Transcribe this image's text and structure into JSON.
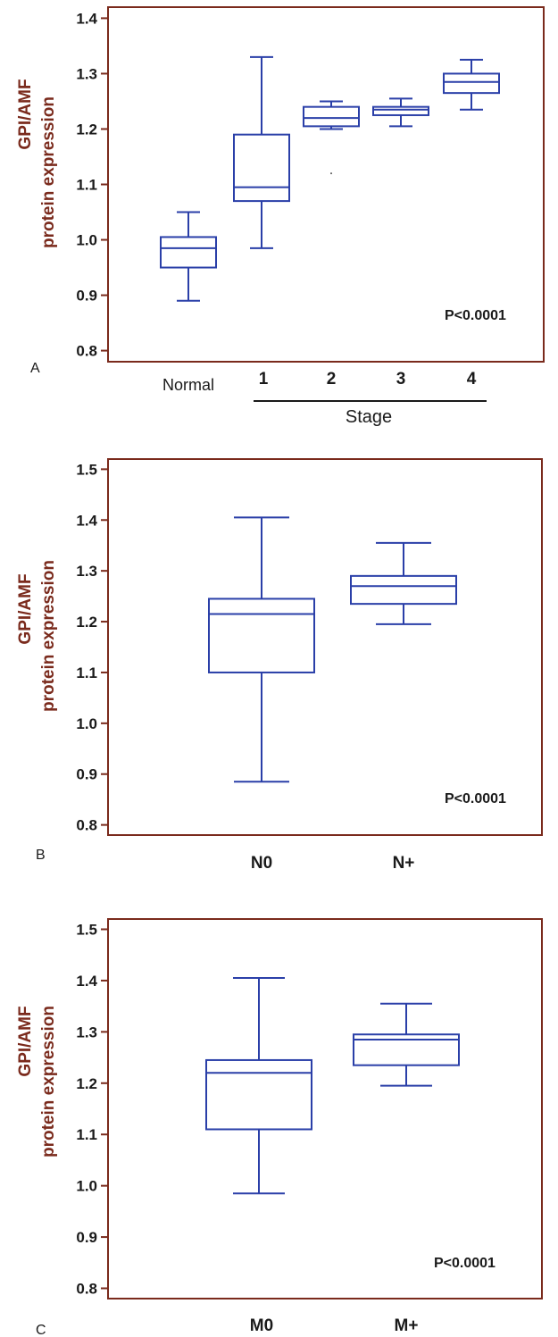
{
  "colors": {
    "frame": "#7a2a1c",
    "box": "#2a3fa8",
    "text": "#1a1a1a",
    "axis_label": "#7a2a1c"
  },
  "chart_data": [
    {
      "type": "box",
      "panel_label": "A",
      "ylabel": [
        "GPI/AMF",
        "protein expression"
      ],
      "ylim": [
        0.78,
        1.42
      ],
      "yticks": [
        "0.8",
        "0.9",
        "1.0",
        "1.1",
        "1.2",
        "1.3",
        "1.4"
      ],
      "categories": [
        "Normal",
        "1",
        "2",
        "3",
        "4"
      ],
      "group_label": "Stage",
      "annotation": "P<0.0001",
      "series": [
        {
          "category": "Normal",
          "min": 0.89,
          "q1": 0.95,
          "median": 0.985,
          "q3": 1.005,
          "max": 1.05
        },
        {
          "category": "1",
          "min": 0.985,
          "q1": 1.07,
          "median": 1.095,
          "q3": 1.19,
          "max": 1.33
        },
        {
          "category": "2",
          "min": 1.2,
          "q1": 1.205,
          "median": 1.22,
          "q3": 1.24,
          "max": 1.25
        },
        {
          "category": "3",
          "min": 1.205,
          "q1": 1.225,
          "median": 1.235,
          "q3": 1.24,
          "max": 1.255
        },
        {
          "category": "4",
          "min": 1.235,
          "q1": 1.265,
          "median": 1.285,
          "q3": 1.3,
          "max": 1.325
        }
      ],
      "outliers": [
        {
          "category": "2",
          "value": 1.12
        }
      ]
    },
    {
      "type": "box",
      "panel_label": "B",
      "ylabel": [
        "GPI/AMF",
        "protein expression"
      ],
      "ylim": [
        0.78,
        1.52
      ],
      "yticks": [
        "0.8",
        "0.9",
        "1.0",
        "1.1",
        "1.2",
        "1.3",
        "1.4",
        "1.5"
      ],
      "categories": [
        "N0",
        "N+"
      ],
      "annotation": "P<0.0001",
      "series": [
        {
          "category": "N0",
          "min": 0.885,
          "q1": 1.1,
          "median": 1.215,
          "q3": 1.245,
          "max": 1.405
        },
        {
          "category": "N+",
          "min": 1.195,
          "q1": 1.235,
          "median": 1.27,
          "q3": 1.29,
          "max": 1.355
        }
      ]
    },
    {
      "type": "box",
      "panel_label": "C",
      "ylabel": [
        "GPI/AMF",
        "protein expression"
      ],
      "ylim": [
        0.78,
        1.52
      ],
      "yticks": [
        "0.8",
        "0.9",
        "1.0",
        "1.1",
        "1.2",
        "1.3",
        "1.4",
        "1.5"
      ],
      "categories": [
        "M0",
        "M+"
      ],
      "annotation": "P<0.0001",
      "series": [
        {
          "category": "M0",
          "min": 0.985,
          "q1": 1.11,
          "median": 1.22,
          "q3": 1.245,
          "max": 1.405
        },
        {
          "category": "M+",
          "min": 1.195,
          "q1": 1.235,
          "median": 1.285,
          "q3": 1.295,
          "max": 1.355
        }
      ]
    }
  ]
}
